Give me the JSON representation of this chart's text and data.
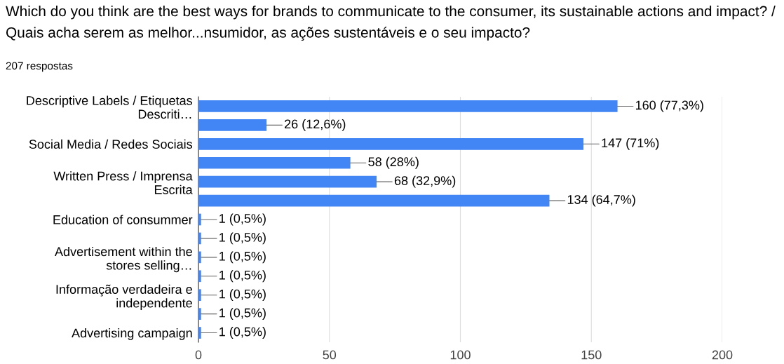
{
  "chart_data": {
    "type": "bar",
    "orientation": "horizontal",
    "title": "Which do you think are the best ways for brands to communicate to the consumer, its sustainable actions and impact? / Quais acha serem as melhor...nsumidor, as ações sustentáveis e o seu impacto?",
    "subtitle": "207 respostas",
    "categories": [
      "Descriptive Labels / Etiquetas Descriti…",
      null,
      "Social Media / Redes Sociais",
      null,
      "Written Press / Imprensa Escrita",
      null,
      "Education of consummer",
      null,
      "Advertisement within the stores selling…",
      null,
      "Informação verdadeira e independente",
      null,
      "Advertising campaign"
    ],
    "values": [
      160,
      26,
      147,
      58,
      68,
      134,
      1,
      1,
      1,
      1,
      1,
      1,
      1
    ],
    "value_labels": [
      "160 (77,3%)",
      "26 (12,6%)",
      "147 (71%)",
      "58 (28%)",
      "68 (32,9%)",
      "134 (64,7%)",
      "1 (0,5%)",
      "1 (0,5%)",
      "1 (0,5%)",
      "1 (0,5%)",
      "1 (0,5%)",
      "1 (0,5%)",
      "1 (0,5%)"
    ],
    "color": "#4285f4",
    "xlim": [
      0,
      200
    ],
    "xticks": [
      0,
      50,
      100,
      150,
      200
    ],
    "grid": "x"
  }
}
